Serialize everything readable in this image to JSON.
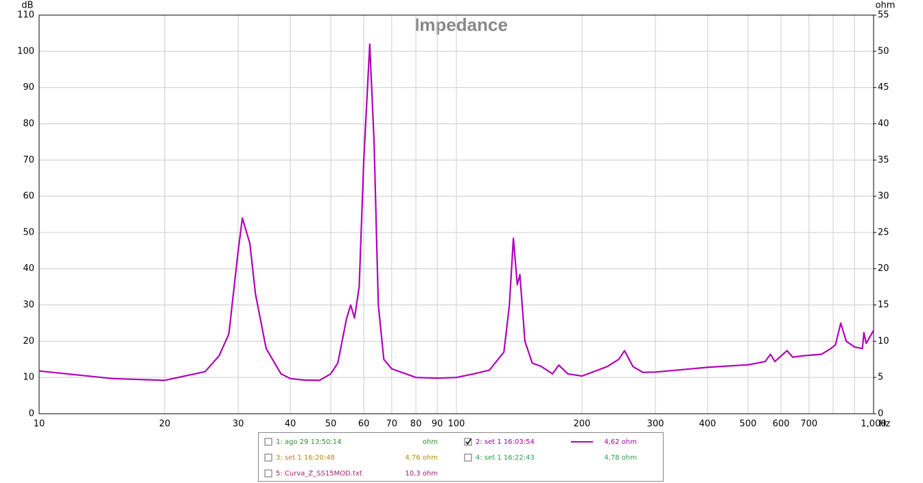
{
  "chart_data": {
    "type": "line",
    "title": "Impedance",
    "y_label": "dB",
    "y2_label": "ohm",
    "x_label": "Hz",
    "xscale": "log",
    "grid": true,
    "xlim": [
      10,
      1000
    ],
    "xticks": [
      10,
      20,
      30,
      40,
      50,
      60,
      70,
      80,
      90,
      100,
      200,
      300,
      400,
      500,
      600,
      700,
      {
        "value": 1000,
        "label": "1,000"
      }
    ],
    "xgrid_extra": [
      800,
      900
    ],
    "ylim": [
      0,
      110
    ],
    "yticks": [
      0,
      10,
      20,
      30,
      40,
      50,
      60,
      70,
      80,
      90,
      100,
      110
    ],
    "y2lim": [
      0,
      55
    ],
    "y2ticks": [
      0,
      5,
      10,
      15,
      20,
      25,
      30,
      35,
      40,
      45,
      50,
      55
    ],
    "x": [
      10,
      15,
      20,
      25,
      27,
      28.5,
      30,
      30.7,
      32,
      33,
      35,
      38,
      40,
      43,
      47,
      50,
      52,
      54.5,
      55.8,
      57,
      58.5,
      60,
      62,
      63.5,
      65,
      67,
      70,
      80,
      90,
      100,
      110,
      120,
      130,
      134,
      137,
      140,
      142,
      146,
      152,
      160,
      170,
      176,
      185,
      200,
      230,
      245,
      253,
      265,
      280,
      300,
      400,
      500,
      550,
      566,
      580,
      620,
      640,
      680,
      750,
      790,
      810,
      834,
      860,
      900,
      940,
      948,
      960,
      1000
    ],
    "series": [
      {
        "name": "2: set 1 16:03:54",
        "color": "#b000b8",
        "axis": "y2",
        "values": [
          5.9,
          4.85,
          4.6,
          5.8,
          8,
          11,
          22.5,
          27,
          23.5,
          16.5,
          9,
          5.5,
          4.85,
          4.65,
          4.6,
          5.5,
          7,
          13,
          15,
          13.2,
          17.5,
          35,
          51,
          37.5,
          15,
          7.5,
          6.2,
          5,
          4.9,
          5,
          5.5,
          6,
          8.5,
          15,
          24.2,
          17.8,
          19.2,
          10,
          7,
          6.5,
          5.5,
          6.7,
          5.5,
          5.2,
          6.5,
          7.5,
          8.7,
          6.5,
          5.7,
          5.75,
          6.4,
          6.75,
          7.2,
          8.2,
          7.2,
          8.7,
          7.8,
          8,
          8.2,
          9,
          9.5,
          12.5,
          10,
          9.2,
          9,
          11.2,
          9.7,
          11.5
        ]
      }
    ],
    "legend_entries": [
      {
        "name": "1: ago 29 13:50:14",
        "value": "ohm",
        "color": "#2e8b2e",
        "checked": false
      },
      {
        "name": "2: set 1 16:03:54",
        "value": "4,62 ohm",
        "color": "#a000a0",
        "checked": true
      },
      {
        "name": "3: set 1 16:20:48",
        "value": "4,76 ohm",
        "color": "#b8860b",
        "checked": false
      },
      {
        "name": "4: set 1 16:22:43",
        "value": "4,78 ohm",
        "color": "#20a050",
        "checked": false
      },
      {
        "name": "5: Curva_Z_SS15MOD.txt",
        "value": "10,3 ohm",
        "color": "#a02070",
        "checked": false
      }
    ]
  }
}
